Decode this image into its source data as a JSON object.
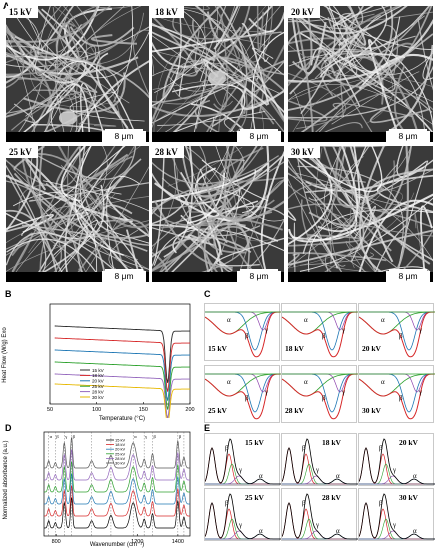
{
  "panels": {
    "a_label": "A",
    "b_label": "B",
    "c_label": "C",
    "d_label": "D",
    "e_label": "E"
  },
  "sem": {
    "scale_text": "8 μm",
    "images": [
      {
        "voltage": "15 kV"
      },
      {
        "voltage": "18 kV"
      },
      {
        "voltage": "20 kV"
      },
      {
        "voltage": "25 kV"
      },
      {
        "voltage": "28 kV"
      },
      {
        "voltage": "30 kV"
      }
    ]
  },
  "dsc": {
    "ylabel": "Heat Flow (W/g) Exo",
    "xlabel": "Temperature (°C)",
    "xticks": [
      "50",
      "100",
      "150",
      "200"
    ],
    "legend": [
      "15 kV",
      "18 kV",
      "20 kV",
      "25 kV",
      "28 kV",
      "30 kV"
    ],
    "colors": [
      "#2b2b2b",
      "#d62728",
      "#1f77b4",
      "#2ca02c",
      "#9467bd",
      "#e6b800"
    ]
  },
  "deconv": {
    "voltages": [
      "15 kV",
      "18 kV",
      "20 kV",
      "25 kV",
      "28 kV",
      "30 kV"
    ],
    "alpha": "α",
    "beta": "β",
    "gamma": "γ"
  },
  "ftir": {
    "ylabel": "Normalized absorbance (a.u.)",
    "xlabel": "Wavenumber (cm⁻¹)",
    "xticks": [
      "800",
      "1200",
      "1400"
    ],
    "legend": [
      "15 kV",
      "18 kV",
      "20 kV",
      "25 kV",
      "28 kV",
      "30 kV"
    ],
    "band_labels": [
      "α",
      "β",
      "γ",
      "β",
      "α",
      "β",
      "γ",
      "β"
    ]
  },
  "raman": {
    "voltages": [
      "15 kV",
      "18 kV",
      "20 kV",
      "25 kV",
      "28 kV",
      "30 kV"
    ],
    "beta": "β",
    "gamma": "γ",
    "alpha": "α"
  }
}
